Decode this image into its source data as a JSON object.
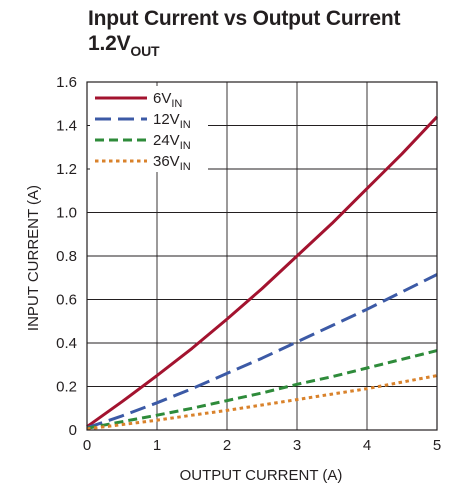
{
  "title": {
    "line1": "Input Current vs Output Current",
    "line2_main": "1.2V",
    "line2_sub": "OUT"
  },
  "chart_data": {
    "type": "line",
    "xlabel": "OUTPUT CURRENT (A)",
    "ylabel": "INPUT CURRENT (A)",
    "xlim": [
      0,
      5
    ],
    "ylim": [
      0,
      1.6
    ],
    "x_ticks": [
      "0",
      "1",
      "2",
      "3",
      "4",
      "5"
    ],
    "y_ticks": [
      "0",
      "0.2",
      "0.4",
      "0.6",
      "0.8",
      "1.0",
      "1.2",
      "1.4",
      "1.6"
    ],
    "grid": true,
    "legend_position": "top-left",
    "series": [
      {
        "name": "6V",
        "name_sub": "IN",
        "color": "#a3132f",
        "style": "solid",
        "x": [
          0,
          0.5,
          1,
          1.5,
          2,
          2.5,
          3,
          3.5,
          4,
          4.5,
          5
        ],
        "y": [
          0.015,
          0.13,
          0.25,
          0.375,
          0.51,
          0.65,
          0.8,
          0.95,
          1.11,
          1.27,
          1.44
        ]
      },
      {
        "name": "12V",
        "name_sub": "IN",
        "color": "#3c5aa6",
        "style": "longdash",
        "x": [
          0,
          0.5,
          1,
          1.5,
          2,
          2.5,
          3,
          3.5,
          4,
          4.5,
          5
        ],
        "y": [
          0.01,
          0.065,
          0.125,
          0.19,
          0.26,
          0.33,
          0.405,
          0.48,
          0.555,
          0.635,
          0.715
        ]
      },
      {
        "name": "24V",
        "name_sub": "IN",
        "color": "#2e8b3a",
        "style": "dash",
        "x": [
          0,
          0.5,
          1,
          1.5,
          2,
          2.5,
          3,
          3.5,
          4,
          4.5,
          5
        ],
        "y": [
          0.008,
          0.038,
          0.068,
          0.1,
          0.135,
          0.17,
          0.21,
          0.245,
          0.285,
          0.325,
          0.365
        ]
      },
      {
        "name": "36V",
        "name_sub": "IN",
        "color": "#d9822b",
        "style": "dot",
        "x": [
          0,
          0.5,
          1,
          1.5,
          2,
          2.5,
          3,
          3.5,
          4,
          4.5,
          5
        ],
        "y": [
          0.005,
          0.025,
          0.045,
          0.068,
          0.09,
          0.115,
          0.14,
          0.165,
          0.19,
          0.22,
          0.25
        ]
      }
    ]
  }
}
